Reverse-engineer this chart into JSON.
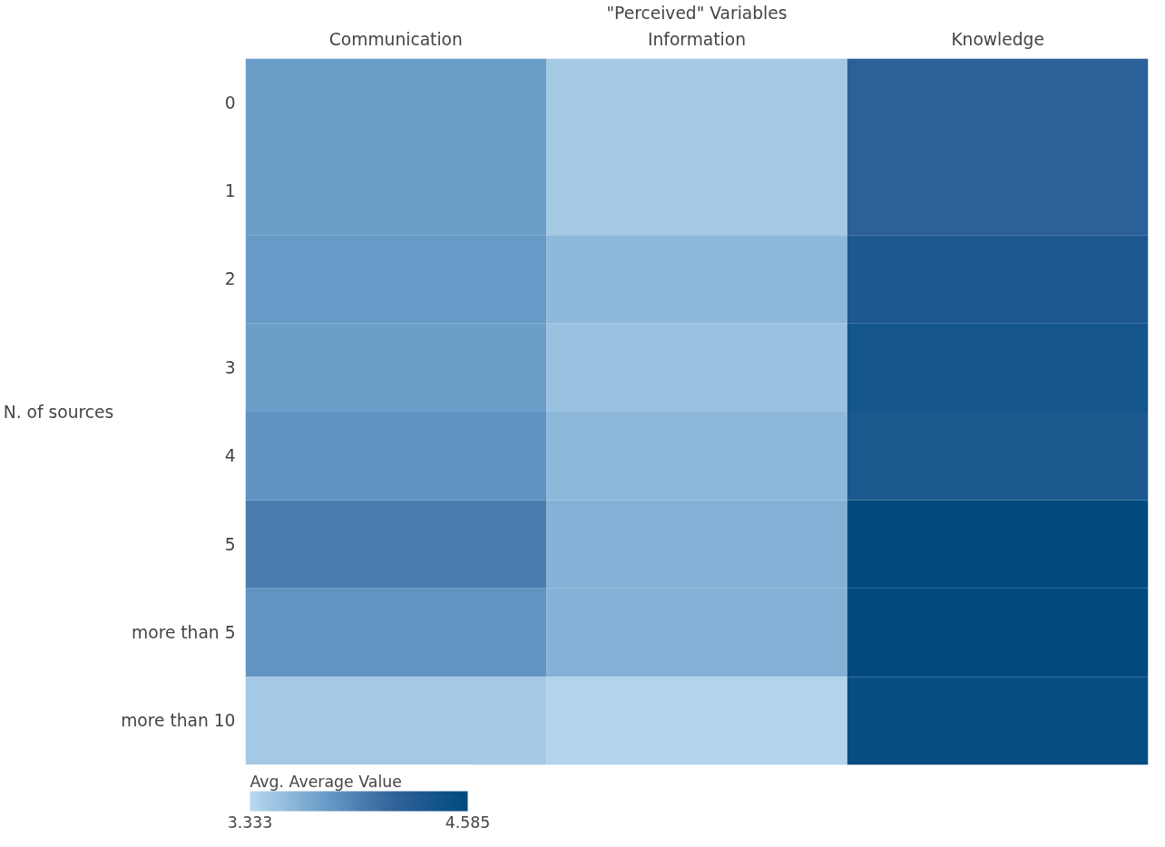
{
  "chart_data": {
    "type": "heatmap",
    "xlabel": "\"Perceived\" Variables",
    "ylabel": "N. of sources",
    "clabel": "Avg. Average Value",
    "categories": [
      "Communication",
      "Information",
      "Knowledge"
    ],
    "y_categories": [
      "0",
      "1",
      "2",
      "3",
      "4",
      "5",
      "more than 5",
      "more than 10"
    ],
    "cells": [
      [
        3.75,
        3.45,
        4.2
      ],
      [
        3.75,
        3.45,
        4.2
      ],
      [
        3.78,
        3.57,
        4.33
      ],
      [
        3.75,
        3.5,
        4.4
      ],
      [
        3.83,
        3.57,
        4.35
      ],
      [
        3.98,
        3.62,
        4.585
      ],
      [
        3.82,
        3.62,
        4.585
      ],
      [
        3.45,
        3.38,
        4.52
      ]
    ],
    "clim": [
      3.333,
      4.585
    ],
    "cticks": [
      {
        "value": 3.333,
        "label": "3.333"
      },
      {
        "value": 4.585,
        "label": "4.585"
      }
    ]
  }
}
